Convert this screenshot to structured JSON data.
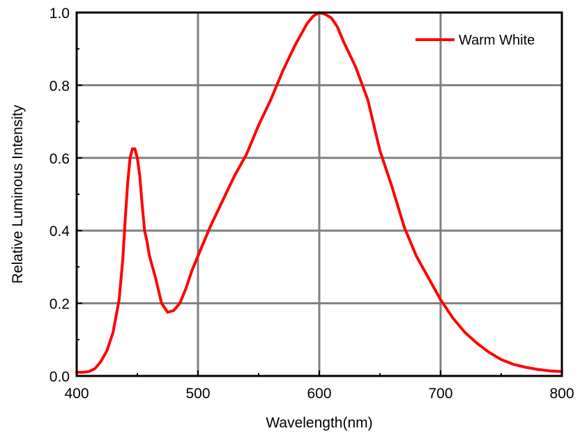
{
  "chart_data": {
    "type": "line",
    "title": "",
    "xlabel": "Wavelength(nm)",
    "ylabel": "Relative Luminous Intensity",
    "xlim": [
      400,
      800
    ],
    "ylim": [
      0.0,
      1.0
    ],
    "x_ticks": [
      400,
      500,
      600,
      700,
      800
    ],
    "x_tick_labels": [
      "400",
      "500",
      "600",
      "700",
      "800"
    ],
    "y_ticks": [
      0.0,
      0.2,
      0.4,
      0.6,
      0.8,
      1.0
    ],
    "y_tick_labels": [
      "0.0",
      "0.2",
      "0.4",
      "0.6",
      "0.8",
      "1.0"
    ],
    "grid": true,
    "legend_position": "top-right",
    "colors": {
      "series": "#ff0000",
      "grid": "#808080",
      "axis": "#000000"
    },
    "series": [
      {
        "name": "Warm White",
        "x": [
          400,
          405,
          410,
          415,
          420,
          425,
          430,
          435,
          438,
          440,
          442,
          444,
          446,
          448,
          450,
          452,
          454,
          456,
          458,
          460,
          465,
          470,
          475,
          480,
          485,
          490,
          495,
          500,
          510,
          520,
          530,
          540,
          550,
          560,
          570,
          580,
          590,
          595,
          600,
          605,
          610,
          615,
          620,
          630,
          640,
          650,
          660,
          670,
          680,
          690,
          700,
          710,
          720,
          730,
          740,
          750,
          760,
          770,
          780,
          790,
          800
        ],
        "values": [
          0.01,
          0.01,
          0.012,
          0.02,
          0.04,
          0.07,
          0.12,
          0.21,
          0.32,
          0.43,
          0.53,
          0.6,
          0.625,
          0.625,
          0.6,
          0.55,
          0.47,
          0.4,
          0.37,
          0.33,
          0.27,
          0.2,
          0.175,
          0.18,
          0.2,
          0.24,
          0.29,
          0.33,
          0.41,
          0.48,
          0.55,
          0.61,
          0.69,
          0.76,
          0.84,
          0.91,
          0.97,
          0.99,
          1.0,
          0.995,
          0.985,
          0.96,
          0.92,
          0.85,
          0.76,
          0.62,
          0.52,
          0.41,
          0.33,
          0.27,
          0.21,
          0.16,
          0.12,
          0.09,
          0.065,
          0.045,
          0.032,
          0.024,
          0.018,
          0.014,
          0.012
        ]
      }
    ]
  }
}
